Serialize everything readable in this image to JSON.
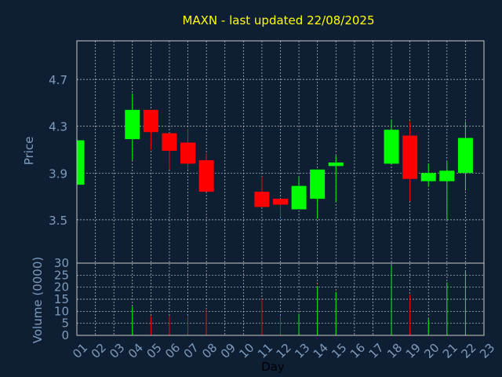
{
  "chart_data": {
    "type": "candlestick",
    "title": "MAXN - last updated 22/08/2025",
    "xlabel": "Day",
    "ylabel_price": "Price",
    "ylabel_volume": "Volume (0000)",
    "x_ticks": [
      "01",
      "02",
      "03",
      "04",
      "05",
      "06",
      "07",
      "08",
      "09",
      "10",
      "11",
      "12",
      "13",
      "14",
      "15",
      "16",
      "17",
      "18",
      "19",
      "20",
      "21",
      "22",
      "23"
    ],
    "price_ticks": [
      "3.5",
      "3.9",
      "4.3",
      "4.7"
    ],
    "volume_ticks": [
      "0",
      "5",
      "10",
      "15",
      "20",
      "25",
      "30"
    ],
    "price_ylim": [
      3.13,
      5.03
    ],
    "volume_ylim": [
      0,
      30
    ],
    "grid": true,
    "colors": {
      "background": "#0f1f33",
      "frame": "#c8c8c8",
      "grid": "#c8c8c8",
      "up": "#00ff00",
      "down": "#ff0000",
      "title": "#ffff00",
      "axis_text": "#7f9cbb"
    },
    "candles": [
      {
        "day": 1,
        "open": 3.8,
        "high": 4.18,
        "low": 3.8,
        "close": 4.18,
        "volume": 0
      },
      {
        "day": 4,
        "open": 4.19,
        "high": 4.58,
        "low": 4.01,
        "close": 4.44,
        "volume": 12
      },
      {
        "day": 5,
        "open": 4.44,
        "high": 4.44,
        "low": 4.1,
        "close": 4.25,
        "volume": 8
      },
      {
        "day": 6,
        "open": 4.24,
        "high": 4.24,
        "low": 3.93,
        "close": 4.09,
        "volume": 8
      },
      {
        "day": 7,
        "open": 4.16,
        "high": 4.28,
        "low": 3.93,
        "close": 3.98,
        "volume": 8
      },
      {
        "day": 8,
        "open": 4.01,
        "high": 4.07,
        "low": 3.74,
        "close": 3.74,
        "volume": 11
      },
      {
        "day": 11,
        "open": 3.74,
        "high": 3.87,
        "low": 3.61,
        "close": 3.61,
        "volume": 15
      },
      {
        "day": 12,
        "open": 3.68,
        "high": 3.68,
        "low": 3.52,
        "close": 3.63,
        "volume": 8
      },
      {
        "day": 13,
        "open": 3.59,
        "high": 3.87,
        "low": 3.59,
        "close": 3.79,
        "volume": 9
      },
      {
        "day": 14,
        "open": 3.68,
        "high": 3.93,
        "low": 3.51,
        "close": 3.93,
        "volume": 20
      },
      {
        "day": 15,
        "open": 3.96,
        "high": 4.05,
        "low": 3.65,
        "close": 3.99,
        "volume": 18
      },
      {
        "day": 18,
        "open": 3.98,
        "high": 4.36,
        "low": 3.98,
        "close": 4.27,
        "volume": 29
      },
      {
        "day": 19,
        "open": 4.22,
        "high": 4.34,
        "low": 3.66,
        "close": 3.85,
        "volume": 17
      },
      {
        "day": 20,
        "open": 3.83,
        "high": 3.98,
        "low": 3.79,
        "close": 3.9,
        "volume": 7
      },
      {
        "day": 21,
        "open": 3.83,
        "high": 4.0,
        "low": 3.5,
        "close": 3.92,
        "volume": 22
      },
      {
        "day": 22,
        "open": 3.9,
        "high": 4.34,
        "low": 3.75,
        "close": 4.2,
        "volume": 27
      }
    ]
  }
}
